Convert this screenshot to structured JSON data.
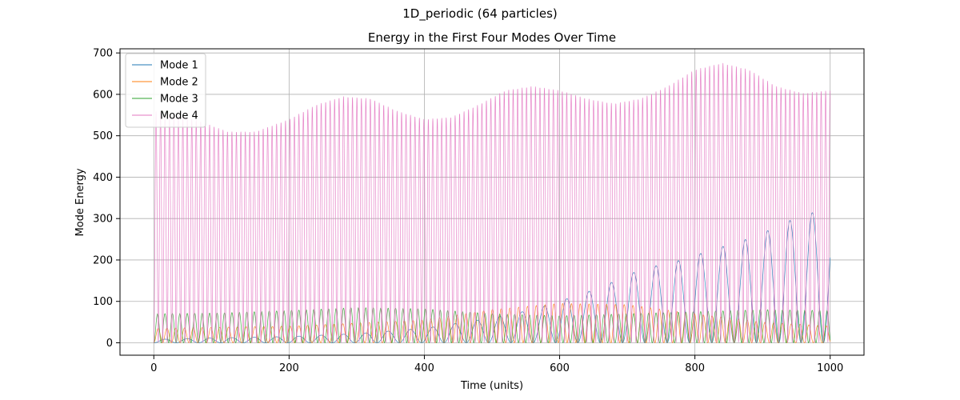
{
  "figure": {
    "suptitle": "1D_periodic (64 particles)"
  },
  "chart_data": {
    "type": "line",
    "title": "Energy in the First Four Modes Over Time",
    "xlabel": "Time (units)",
    "ylabel": "Mode Energy",
    "xlim": [
      -50,
      1050
    ],
    "ylim": [
      -30,
      710
    ],
    "xticks": [
      0,
      200,
      400,
      600,
      800,
      1000
    ],
    "yticks": [
      0,
      100,
      200,
      300,
      400,
      500,
      600,
      700
    ],
    "grid": true,
    "legend_position": "upper-left",
    "series": [
      {
        "name": "Mode 1",
        "color": "#1f77b4",
        "envelope_max": [
          [
            0,
            8
          ],
          [
            100,
            12
          ],
          [
            200,
            15
          ],
          [
            300,
            22
          ],
          [
            400,
            35
          ],
          [
            500,
            60
          ],
          [
            560,
            80
          ],
          [
            600,
            100
          ],
          [
            630,
            118
          ],
          [
            660,
            132
          ],
          [
            700,
            165
          ],
          [
            740,
            185
          ],
          [
            780,
            200
          ],
          [
            820,
            222
          ],
          [
            860,
            242
          ],
          [
            900,
            262
          ],
          [
            920,
            285
          ],
          [
            960,
            305
          ],
          [
            990,
            325
          ],
          [
            1000,
            310
          ]
        ],
        "envelope_min": [
          [
            0,
            0
          ],
          [
            500,
            0
          ],
          [
            1000,
            0
          ]
        ],
        "x_data": [
          0,
          1000
        ],
        "period": 33
      },
      {
        "name": "Mode 2",
        "color": "#ff7f0e",
        "envelope_max": [
          [
            0,
            35
          ],
          [
            200,
            40
          ],
          [
            400,
            55
          ],
          [
            500,
            80
          ],
          [
            600,
            95
          ],
          [
            700,
            92
          ],
          [
            800,
            70
          ],
          [
            900,
            50
          ],
          [
            1000,
            40
          ]
        ],
        "envelope_min": [
          [
            0,
            0
          ],
          [
            1000,
            0
          ]
        ],
        "x_data": [
          0,
          1000
        ],
        "period": 13
      },
      {
        "name": "Mode 3",
        "color": "#2ca02c",
        "envelope_max": [
          [
            0,
            70
          ],
          [
            100,
            72
          ],
          [
            200,
            78
          ],
          [
            300,
            85
          ],
          [
            400,
            82
          ],
          [
            500,
            70
          ],
          [
            600,
            65
          ],
          [
            700,
            70
          ],
          [
            800,
            75
          ],
          [
            900,
            80
          ],
          [
            1000,
            78
          ]
        ],
        "envelope_min": [
          [
            0,
            0
          ],
          [
            1000,
            0
          ]
        ],
        "x_data": [
          0,
          1000
        ],
        "period": 11
      },
      {
        "name": "Mode 4",
        "color": "#e377c2",
        "envelope_max": [
          [
            0,
            560
          ],
          [
            60,
            540
          ],
          [
            110,
            510
          ],
          [
            150,
            510
          ],
          [
            200,
            540
          ],
          [
            240,
            575
          ],
          [
            280,
            595
          ],
          [
            320,
            590
          ],
          [
            360,
            560
          ],
          [
            400,
            540
          ],
          [
            440,
            545
          ],
          [
            480,
            575
          ],
          [
            520,
            610
          ],
          [
            560,
            620
          ],
          [
            600,
            610
          ],
          [
            640,
            590
          ],
          [
            680,
            578
          ],
          [
            720,
            590
          ],
          [
            760,
            620
          ],
          [
            800,
            660
          ],
          [
            840,
            676
          ],
          [
            880,
            660
          ],
          [
            920,
            620
          ],
          [
            960,
            603
          ],
          [
            1000,
            610
          ]
        ],
        "envelope_min": [
          [
            0,
            0
          ],
          [
            1000,
            0
          ]
        ],
        "x_data": [
          0,
          1000
        ],
        "period": 6.6
      }
    ]
  }
}
